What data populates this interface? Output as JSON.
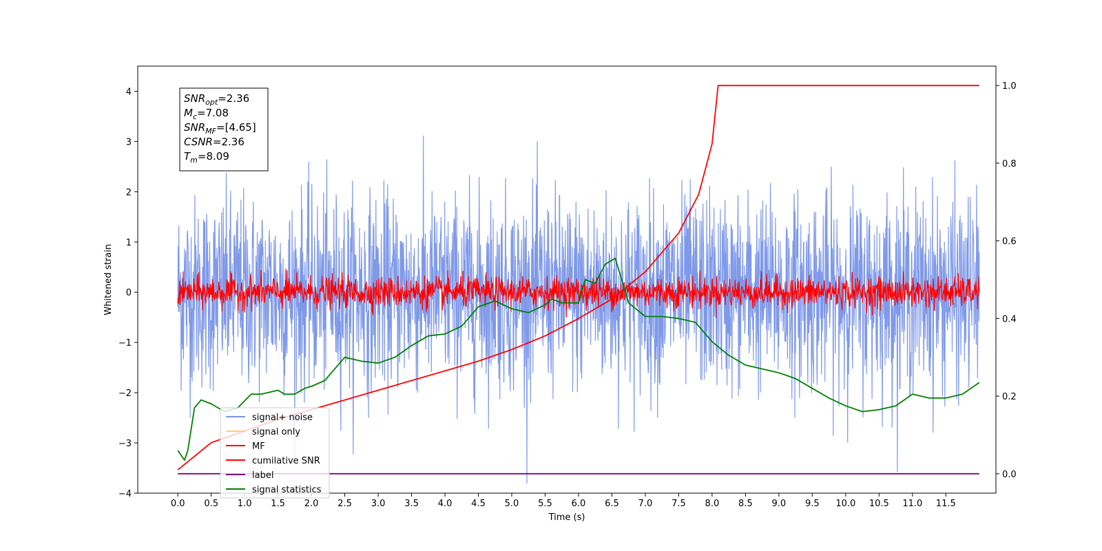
{
  "chart_data": {
    "type": "line",
    "xlabel": "Time (s)",
    "ylabel": "Whitened strain",
    "xlim": [
      -0.6,
      12.25
    ],
    "ylim": [
      -4.0,
      4.5
    ],
    "y2lim": [
      -0.05,
      1.05
    ],
    "xticks": [
      "0.0",
      "0.5",
      "1.0",
      "1.5",
      "2.0",
      "2.5",
      "3.0",
      "3.5",
      "4.0",
      "4.5",
      "5.0",
      "5.5",
      "6.0",
      "6.5",
      "7.0",
      "7.5",
      "8.0",
      "8.5",
      "9.0",
      "9.5",
      "10.0",
      "10.5",
      "11.0",
      "11.5"
    ],
    "yticks": [
      "−4",
      "−3",
      "−2",
      "−1",
      "0",
      "1",
      "2",
      "3",
      "4"
    ],
    "y2ticks": [
      "0.0",
      "0.2",
      "0.4",
      "0.6",
      "0.8",
      "1.0"
    ],
    "series": [
      {
        "name": "signal+ noise",
        "color": "#7893e8",
        "axis": "left",
        "approx_std": 0.95,
        "x_range": [
          0.0,
          12.0
        ]
      },
      {
        "name": "signal only",
        "color": "#ffcc80",
        "axis": "left",
        "values": []
      },
      {
        "name": "MF",
        "color": "#ff0000",
        "axis": "left",
        "approx_std": 0.15,
        "x_range": [
          0.0,
          12.0
        ]
      },
      {
        "name": "cumilative SNR",
        "color": "#ff0000",
        "axis": "right",
        "x": [
          0.0,
          0.5,
          1.0,
          1.5,
          2.0,
          2.5,
          3.0,
          3.5,
          4.0,
          4.5,
          5.0,
          5.5,
          6.0,
          6.5,
          7.0,
          7.5,
          7.8,
          8.0,
          8.09,
          9.0,
          10.0,
          11.0,
          12.0
        ],
        "values": [
          0.01,
          0.08,
          0.11,
          0.14,
          0.165,
          0.19,
          0.215,
          0.24,
          0.265,
          0.29,
          0.32,
          0.355,
          0.4,
          0.45,
          0.52,
          0.62,
          0.72,
          0.85,
          1.0,
          1.0,
          1.0,
          1.0,
          1.0
        ]
      },
      {
        "name": "label",
        "color": "#800080",
        "axis": "right",
        "x": [
          0.0,
          12.0
        ],
        "values": [
          0.0,
          0.0
        ]
      },
      {
        "name": "signal statistics",
        "color": "#008000",
        "axis": "right",
        "x": [
          0.0,
          0.1,
          0.15,
          0.25,
          0.35,
          0.5,
          0.7,
          0.9,
          1.1,
          1.25,
          1.5,
          1.6,
          1.75,
          1.9,
          2.0,
          2.2,
          2.5,
          2.75,
          3.0,
          3.25,
          3.5,
          3.75,
          4.0,
          4.25,
          4.5,
          4.75,
          5.0,
          5.25,
          5.5,
          5.6,
          5.75,
          6.0,
          6.1,
          6.25,
          6.4,
          6.55,
          6.75,
          7.0,
          7.25,
          7.5,
          7.75,
          8.0,
          8.25,
          8.5,
          8.75,
          9.0,
          9.25,
          9.5,
          9.75,
          10.0,
          10.25,
          10.5,
          10.75,
          11.0,
          11.25,
          11.5,
          11.75,
          12.0
        ],
        "values": [
          0.06,
          0.035,
          0.06,
          0.17,
          0.19,
          0.18,
          0.16,
          0.17,
          0.205,
          0.205,
          0.215,
          0.205,
          0.205,
          0.22,
          0.225,
          0.24,
          0.3,
          0.29,
          0.285,
          0.3,
          0.33,
          0.355,
          0.36,
          0.38,
          0.43,
          0.445,
          0.425,
          0.415,
          0.435,
          0.45,
          0.44,
          0.44,
          0.5,
          0.49,
          0.54,
          0.555,
          0.44,
          0.405,
          0.405,
          0.4,
          0.39,
          0.34,
          0.305,
          0.28,
          0.27,
          0.26,
          0.245,
          0.22,
          0.195,
          0.175,
          0.16,
          0.165,
          0.175,
          0.205,
          0.195,
          0.195,
          0.205,
          0.235
        ]
      }
    ],
    "legend": {
      "position": "lower-left",
      "entries": [
        "signal+ noise",
        "signal only",
        "MF",
        "cumilative SNR",
        "label",
        "signal statistics"
      ]
    },
    "annotation": [
      {
        "main": "SNR",
        "sub": "opt",
        "rest": "=2.36"
      },
      {
        "main": "M",
        "sub": "c",
        "rest": "=7.08"
      },
      {
        "main": "SNR",
        "sub": "MF",
        "rest": "=[4.65]"
      },
      {
        "main": "CSNR",
        "sub": "",
        "rest": "=2.36"
      },
      {
        "main": "T",
        "sub": "m",
        "rest": "=8.09"
      }
    ]
  }
}
